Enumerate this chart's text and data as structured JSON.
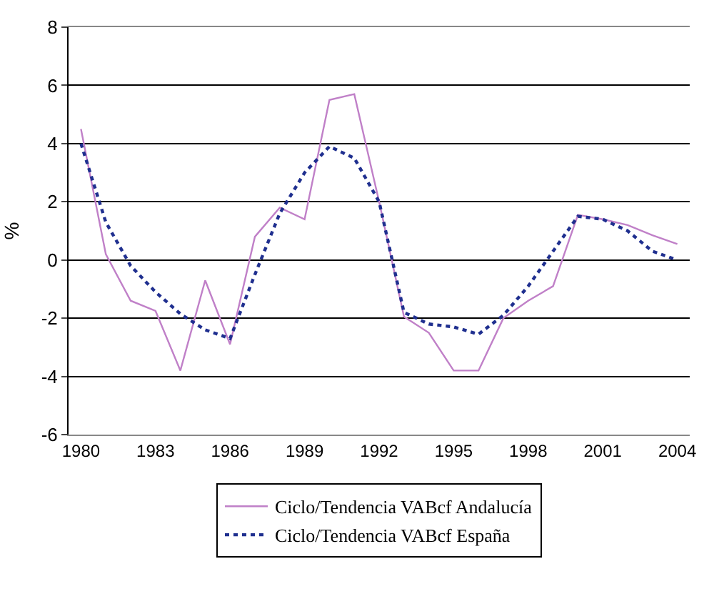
{
  "chart_data": {
    "type": "line",
    "ylabel": "%",
    "categories": [
      "1980",
      null,
      null,
      "1983",
      null,
      null,
      "1986",
      null,
      null,
      "1989",
      null,
      null,
      "1992",
      null,
      null,
      "1995",
      null,
      null,
      "1998",
      null,
      null,
      "2001",
      null,
      null,
      "2004"
    ],
    "series": [
      {
        "name": "Ciclo/Tendencia VABcf Andalucía",
        "color": "#c080c8",
        "line_style": "solid",
        "values": [
          4.5,
          0.2,
          -1.4,
          -1.75,
          -3.8,
          -0.7,
          -2.9,
          0.8,
          1.8,
          1.4,
          5.5,
          5.7,
          2.0,
          -1.95,
          -2.5,
          -3.8,
          -3.8,
          -2.0,
          -1.4,
          -0.9,
          1.55,
          1.4,
          1.2,
          0.85,
          0.55
        ]
      },
      {
        "name": "Ciclo/Tendencia VABcf España",
        "color": "#1f2f8f",
        "line_style": "dotted",
        "values": [
          4.0,
          1.3,
          -0.2,
          -1.1,
          -1.85,
          -2.4,
          -2.7,
          -0.5,
          1.6,
          3.0,
          3.9,
          3.5,
          2.0,
          -1.8,
          -2.2,
          -2.3,
          -2.55,
          -1.9,
          -0.9,
          0.3,
          1.5,
          1.4,
          1.0,
          0.3,
          0.0
        ]
      }
    ],
    "ylim": [
      -6,
      8
    ],
    "yticks": [
      -6,
      -4,
      -2,
      0,
      2,
      4,
      6,
      8
    ],
    "grid": "y",
    "legend": "bottom",
    "marker": "none"
  }
}
